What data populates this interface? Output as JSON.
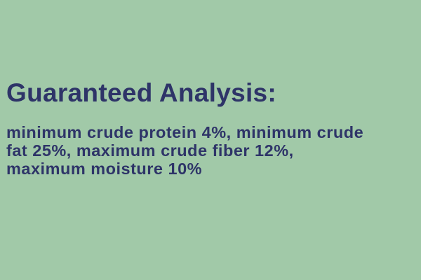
{
  "colors": {
    "background": "#a1c9a8",
    "text": "#2e3468"
  },
  "heading": "Guaranteed Analysis:",
  "lines": [
    "minimum crude protein 4%, minimum crude",
    "fat 25%, maximum crude fiber 12%,",
    "maximum moisture 10%"
  ]
}
